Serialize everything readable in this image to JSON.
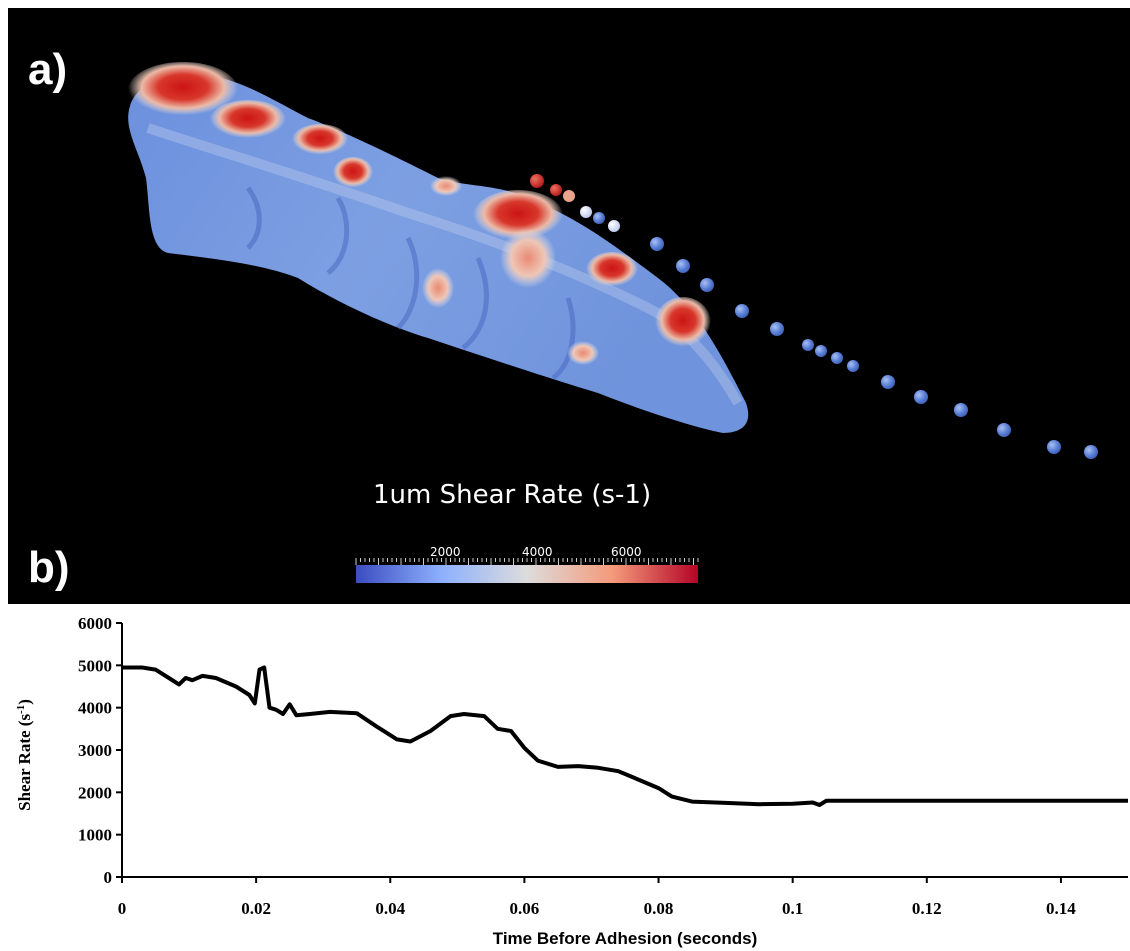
{
  "panel_a": {
    "label": "a)",
    "colorbar": {
      "title": "1um Shear Rate (s-1)",
      "ticks": [
        "2000",
        "4000",
        "6000"
      ],
      "colors": [
        "#3b4cc0",
        "#8db0fe",
        "#dddcdc",
        "#f49a7b",
        "#b40426"
      ]
    },
    "render_colors": {
      "low": "#5b7fd6",
      "mid": "#e8e0dc",
      "high": "#c81e1e",
      "background": "#000000"
    }
  },
  "panel_b": {
    "label": "b)"
  },
  "chart_data": {
    "type": "line",
    "title": "",
    "xlabel": "Time Before Adhesion (seconds)",
    "ylabel_main": "Shear Rate (s",
    "ylabel_sup": "-1",
    "ylabel_close": ")",
    "xlim": [
      0,
      0.15
    ],
    "ylim": [
      0,
      6000
    ],
    "xticks": [
      "0",
      "0.02",
      "0.04",
      "0.06",
      "0.08",
      "0.1",
      "0.12",
      "0.14"
    ],
    "xtick_values": [
      0,
      0.02,
      0.04,
      0.06,
      0.08,
      0.1,
      0.12,
      0.14
    ],
    "yticks": [
      "0",
      "1000",
      "2000",
      "3000",
      "4000",
      "5000",
      "6000"
    ],
    "ytick_values": [
      0,
      1000,
      2000,
      3000,
      4000,
      5000,
      6000
    ],
    "grid": false,
    "line_color": "#000000",
    "series": [
      {
        "x": [
          0,
          0.003,
          0.005,
          0.007,
          0.0085,
          0.0095,
          0.0105,
          0.012,
          0.014,
          0.017,
          0.019,
          0.0198,
          0.0205,
          0.0212,
          0.022,
          0.023,
          0.024,
          0.025,
          0.026,
          0.028,
          0.031,
          0.035,
          0.038,
          0.041,
          0.043,
          0.046,
          0.049,
          0.051,
          0.054,
          0.056,
          0.058,
          0.06,
          0.062,
          0.065,
          0.068,
          0.071,
          0.074,
          0.077,
          0.08,
          0.082,
          0.085,
          0.09,
          0.095,
          0.1,
          0.103,
          0.104,
          0.105,
          0.11,
          0.12,
          0.13,
          0.14,
          0.15
        ],
        "y": [
          4950,
          4950,
          4900,
          4700,
          4550,
          4700,
          4650,
          4750,
          4700,
          4500,
          4300,
          4100,
          4900,
          4950,
          4000,
          3950,
          3850,
          4080,
          3820,
          3850,
          3900,
          3870,
          3550,
          3250,
          3200,
          3450,
          3800,
          3850,
          3800,
          3500,
          3450,
          3050,
          2750,
          2600,
          2620,
          2580,
          2500,
          2300,
          2100,
          1900,
          1780,
          1750,
          1720,
          1730,
          1760,
          1700,
          1800,
          1800,
          1800,
          1800,
          1800,
          1800
        ]
      }
    ]
  }
}
